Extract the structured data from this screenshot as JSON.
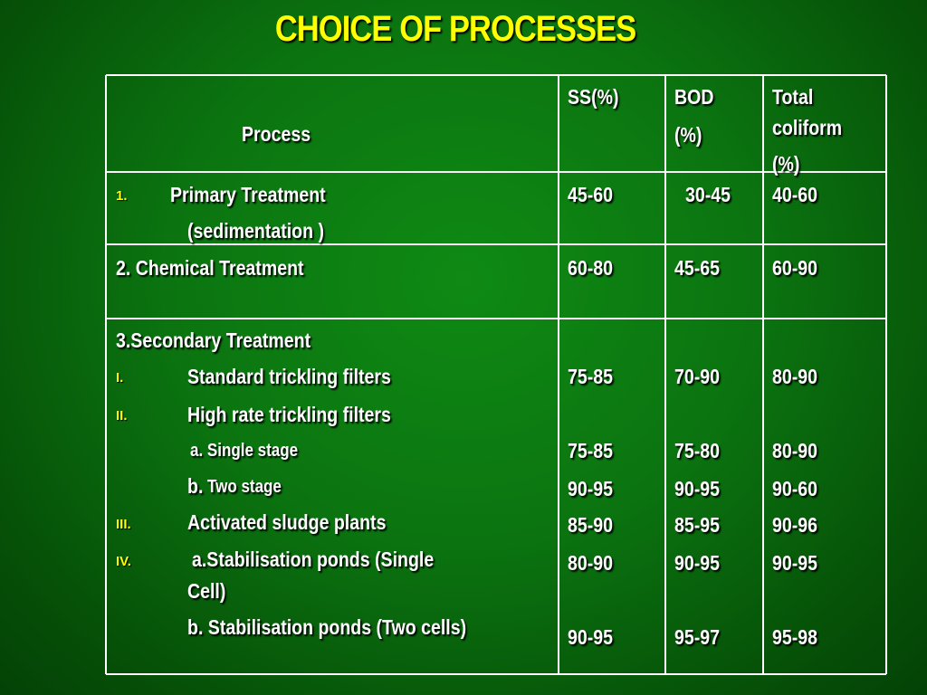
{
  "title": "CHOICE OF PROCESSES",
  "colors": {
    "background": "#0b7410",
    "title": "#ffff00",
    "numbering": "#ffff00",
    "text": "#ffffff",
    "grid": "#ffffff"
  },
  "headers": {
    "process": "Process",
    "ss": "SS(%)",
    "bod_line1": "BOD",
    "bod_line2": "(%)",
    "coliform_line1": "Total",
    "coliform_line2": "coliform",
    "coliform_line3": "(%)"
  },
  "rows": {
    "primary": {
      "num": "1.",
      "label": "Primary Treatment",
      "sub": "(sedimentation )",
      "ss": "45-60",
      "bod": "30-45",
      "coliform": "40-60"
    },
    "chemical": {
      "label": "2. Chemical Treatment",
      "ss": "60-80",
      "bod": "45-65",
      "coliform": "60-90"
    },
    "secondary": {
      "label": "3.Secondary Treatment",
      "items": [
        {
          "num": "I.",
          "label": "Standard trickling filters",
          "ss": "75-85",
          "bod": "70-90",
          "coliform": "80-90"
        },
        {
          "num": "II.",
          "label": "High rate trickling filters"
        },
        {
          "label": "a. Single  stage",
          "ss": "75-85",
          "bod": "75-80",
          "coliform": "80-90"
        },
        {
          "label_b": "b.",
          "label": "Two stage",
          "ss": "90-95",
          "bod": "90-95",
          "coliform": "90-60"
        },
        {
          "num": "III.",
          "label": "Activated sludge plants",
          "ss": "85-90",
          "bod": "85-95",
          "coliform": "90-96"
        },
        {
          "num": "IV.",
          "label": "a.Stabilisation ponds (Single",
          "label_cont": "Cell)",
          "ss": "80-90",
          "bod": "90-95",
          "coliform": "90-95"
        },
        {
          "label": "b. Stabilisation ponds (Two cells)",
          "ss": "90-95",
          "bod": "95-97",
          "coliform": "95-98"
        }
      ]
    }
  }
}
